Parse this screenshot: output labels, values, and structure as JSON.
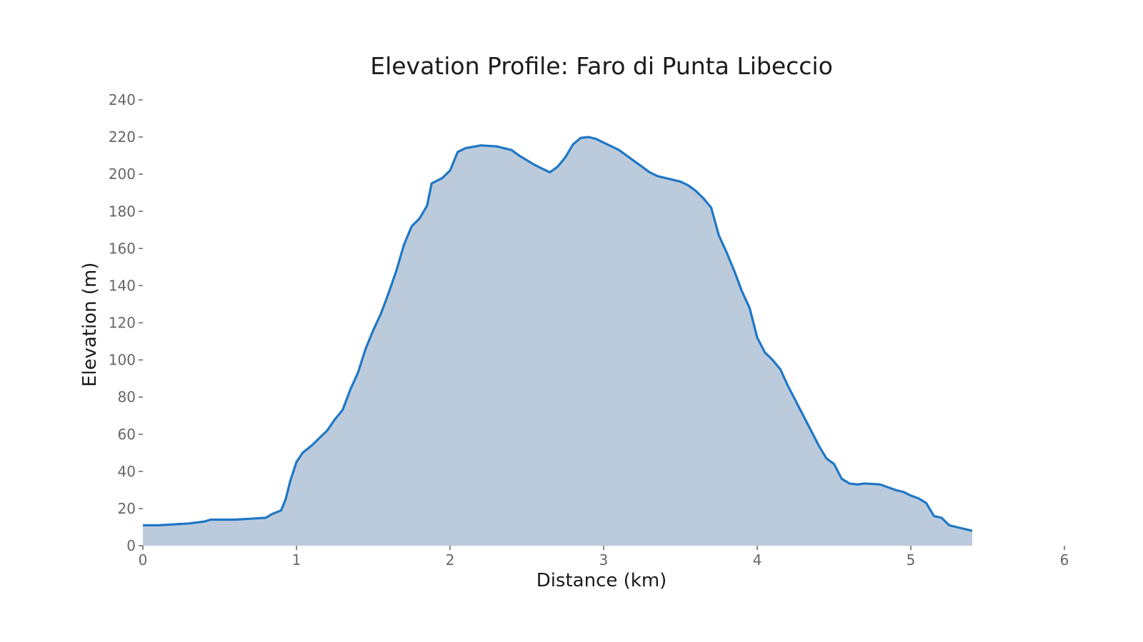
{
  "chart_data": {
    "type": "area",
    "title": "Elevation Profile: Faro di Punta Libeccio",
    "xlabel": "Distance (km)",
    "ylabel": "Elevation (m)",
    "xlim": [
      0,
      6
    ],
    "ylim": [
      0,
      240
    ],
    "x_ticks": [
      0,
      1,
      2,
      3,
      4,
      5,
      6
    ],
    "y_ticks": [
      0,
      20,
      40,
      60,
      80,
      100,
      120,
      140,
      160,
      180,
      200,
      220,
      240
    ],
    "grid": false,
    "legend": false,
    "colors": {
      "line": "#1f77c4",
      "fill": "#bccbdc"
    },
    "series": [
      {
        "x": [
          0,
          0.1,
          0.2,
          0.3,
          0.4,
          0.44,
          0.6,
          0.7,
          0.8,
          0.84,
          0.9,
          0.93,
          0.96,
          1.0,
          1.04,
          1.1,
          1.2,
          1.25,
          1.3,
          1.35,
          1.4,
          1.45,
          1.5,
          1.55,
          1.6,
          1.65,
          1.7,
          1.75,
          1.8,
          1.85,
          1.88,
          1.95,
          2.0,
          2.05,
          2.1,
          2.2,
          2.3,
          2.4,
          2.45,
          2.55,
          2.6,
          2.65,
          2.7,
          2.75,
          2.8,
          2.85,
          2.9,
          2.95,
          3.0,
          3.05,
          3.1,
          3.2,
          3.3,
          3.35,
          3.4,
          3.5,
          3.55,
          3.6,
          3.65,
          3.7,
          3.75,
          3.8,
          3.85,
          3.9,
          3.95,
          4.0,
          4.05,
          4.1,
          4.15,
          4.2,
          4.25,
          4.3,
          4.35,
          4.4,
          4.45,
          4.5,
          4.55,
          4.6,
          4.65,
          4.7,
          4.8,
          4.9,
          4.95,
          5.0,
          5.05,
          5.1,
          5.15,
          5.2,
          5.25,
          5.3,
          5.35,
          5.4
        ],
        "y": [
          11,
          11,
          11.5,
          12,
          13,
          14,
          14,
          14.5,
          15,
          17,
          19,
          25,
          35,
          45,
          50,
          54,
          62,
          68,
          73,
          84,
          93,
          106,
          116,
          125,
          136,
          148,
          162,
          172,
          176,
          183,
          195,
          198,
          202,
          212,
          214,
          215.5,
          215,
          213,
          210,
          205,
          203,
          201,
          204,
          209,
          216,
          219.5,
          220,
          219,
          217,
          215,
          213,
          207,
          201,
          199,
          198,
          196,
          194,
          191,
          187,
          182,
          167,
          158,
          148,
          137,
          128,
          112,
          104,
          100,
          95,
          86,
          78,
          70,
          62,
          54,
          47,
          44,
          36,
          33.5,
          33,
          33.5,
          33,
          30,
          29,
          27,
          25.5,
          23,
          16,
          15,
          11,
          10,
          9,
          8
        ]
      }
    ]
  }
}
